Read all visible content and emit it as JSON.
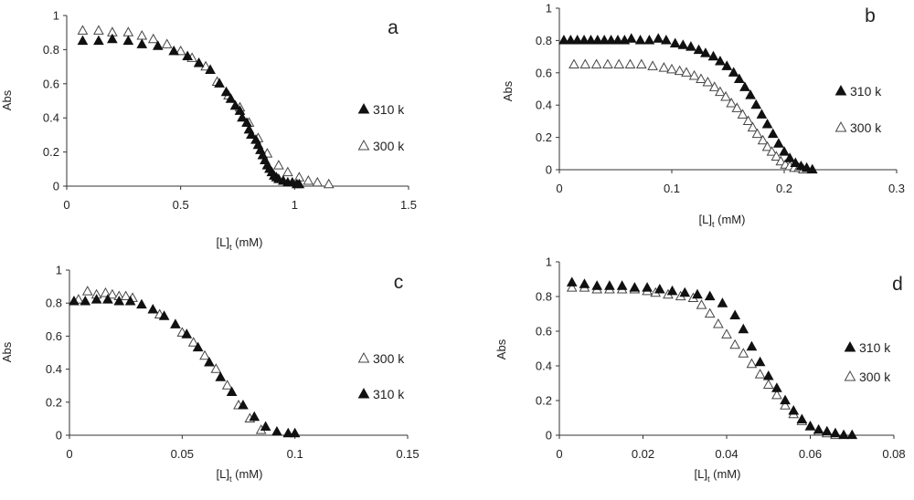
{
  "chart_data": [
    {
      "type": "scatter",
      "panel_label": "a",
      "xlabel_main": "[L]",
      "xlabel_sub": "t",
      "xlabel_unit": " (mM)",
      "ylabel": "Abs",
      "xlim": [
        0,
        1.5
      ],
      "ylim": [
        0,
        1
      ],
      "xticks": [
        "0",
        "0.5",
        "1",
        "1.5"
      ],
      "yticks": [
        "0",
        "0.2",
        "0.4",
        "0.6",
        "0.8",
        "1"
      ],
      "grid": false,
      "legend": [
        {
          "label": "310 k",
          "marker": "filled-triangle"
        },
        {
          "label": "300 k",
          "marker": "open-triangle"
        }
      ],
      "series": [
        {
          "name": "310 k",
          "marker": "filled-triangle",
          "x": [
            0.07,
            0.14,
            0.2,
            0.27,
            0.33,
            0.4,
            0.47,
            0.53,
            0.58,
            0.63,
            0.67,
            0.7,
            0.72,
            0.74,
            0.76,
            0.77,
            0.79,
            0.8,
            0.81,
            0.83,
            0.84,
            0.85,
            0.86,
            0.87,
            0.88,
            0.89,
            0.9,
            0.91,
            0.92,
            0.93,
            0.95,
            0.97,
            0.99,
            1.01,
            1.02
          ],
          "y": [
            0.85,
            0.85,
            0.86,
            0.85,
            0.83,
            0.82,
            0.79,
            0.76,
            0.72,
            0.68,
            0.6,
            0.55,
            0.51,
            0.47,
            0.44,
            0.4,
            0.37,
            0.33,
            0.3,
            0.27,
            0.24,
            0.21,
            0.18,
            0.15,
            0.12,
            0.1,
            0.08,
            0.06,
            0.05,
            0.04,
            0.03,
            0.02,
            0.02,
            0.01,
            0.01
          ]
        },
        {
          "name": "300 k",
          "marker": "open-triangle",
          "x": [
            0.07,
            0.14,
            0.2,
            0.27,
            0.33,
            0.38,
            0.44,
            0.5,
            0.55,
            0.61,
            0.66,
            0.71,
            0.76,
            0.8,
            0.84,
            0.88,
            0.93,
            0.97,
            1.02,
            1.06,
            1.1,
            1.15
          ],
          "y": [
            0.91,
            0.91,
            0.9,
            0.9,
            0.88,
            0.86,
            0.83,
            0.79,
            0.75,
            0.7,
            0.61,
            0.53,
            0.46,
            0.37,
            0.28,
            0.19,
            0.12,
            0.08,
            0.05,
            0.03,
            0.02,
            0.01
          ]
        }
      ]
    },
    {
      "type": "scatter",
      "panel_label": "b",
      "xlabel_main": "[L]",
      "xlabel_sub": "t",
      "xlabel_unit": " (mM)",
      "ylabel": "Abs",
      "xlim": [
        0,
        0.3
      ],
      "ylim": [
        0,
        1
      ],
      "xticks": [
        "0",
        "0.1",
        "0.2",
        "0.3"
      ],
      "yticks": [
        "0",
        "0.2",
        "0.4",
        "0.6",
        "0.8",
        "1"
      ],
      "grid": false,
      "legend": [
        {
          "label": "310 k",
          "marker": "filled-triangle"
        },
        {
          "label": "300 k",
          "marker": "open-triangle"
        }
      ],
      "series": [
        {
          "name": "310 k",
          "marker": "filled-triangle",
          "x": [
            0.004,
            0.01,
            0.016,
            0.022,
            0.028,
            0.034,
            0.04,
            0.046,
            0.052,
            0.058,
            0.064,
            0.072,
            0.08,
            0.088,
            0.095,
            0.103,
            0.11,
            0.117,
            0.124,
            0.13,
            0.137,
            0.143,
            0.149,
            0.155,
            0.16,
            0.165,
            0.17,
            0.175,
            0.18,
            0.185,
            0.19,
            0.195,
            0.2,
            0.205,
            0.21,
            0.215,
            0.22,
            0.225
          ],
          "y": [
            0.8,
            0.8,
            0.8,
            0.8,
            0.8,
            0.8,
            0.8,
            0.8,
            0.8,
            0.8,
            0.81,
            0.8,
            0.8,
            0.81,
            0.8,
            0.78,
            0.77,
            0.76,
            0.74,
            0.72,
            0.7,
            0.67,
            0.64,
            0.6,
            0.56,
            0.51,
            0.46,
            0.4,
            0.34,
            0.28,
            0.22,
            0.16,
            0.11,
            0.07,
            0.04,
            0.02,
            0.01,
            0.0
          ]
        },
        {
          "name": "300 k",
          "marker": "open-triangle",
          "x": [
            0.013,
            0.023,
            0.033,
            0.043,
            0.053,
            0.063,
            0.073,
            0.083,
            0.093,
            0.1,
            0.107,
            0.113,
            0.12,
            0.126,
            0.132,
            0.138,
            0.143,
            0.148,
            0.153,
            0.158,
            0.163,
            0.168,
            0.172,
            0.176,
            0.181,
            0.185,
            0.189,
            0.193,
            0.197,
            0.201,
            0.205,
            0.209,
            0.213,
            0.217
          ],
          "y": [
            0.65,
            0.65,
            0.65,
            0.65,
            0.65,
            0.65,
            0.65,
            0.64,
            0.63,
            0.62,
            0.61,
            0.6,
            0.58,
            0.56,
            0.54,
            0.51,
            0.48,
            0.45,
            0.41,
            0.38,
            0.34,
            0.3,
            0.26,
            0.22,
            0.18,
            0.14,
            0.11,
            0.08,
            0.05,
            0.03,
            0.02,
            0.01,
            0.01,
            0.0
          ]
        }
      ]
    },
    {
      "type": "scatter",
      "panel_label": "c",
      "xlabel_main": "[L]",
      "xlabel_sub": "t",
      "xlabel_unit": " (mM)",
      "ylabel": "Abs",
      "xlim": [
        0,
        0.15
      ],
      "ylim": [
        0,
        1
      ],
      "xticks": [
        "0",
        "0.05",
        "0.1",
        "0.15"
      ],
      "yticks": [
        "0",
        "0.2",
        "0.4",
        "0.6",
        "0.8",
        "1"
      ],
      "grid": false,
      "legend": [
        {
          "label": "300 k",
          "marker": "open-triangle"
        },
        {
          "label": "310 k",
          "marker": "filled-triangle"
        }
      ],
      "series": [
        {
          "name": "310 k",
          "marker": "filled-triangle",
          "x": [
            0.002,
            0.007,
            0.012,
            0.017,
            0.022,
            0.027,
            0.032,
            0.037,
            0.042,
            0.047,
            0.052,
            0.057,
            0.062,
            0.067,
            0.072,
            0.077,
            0.082,
            0.087,
            0.092,
            0.097,
            0.1
          ],
          "y": [
            0.81,
            0.81,
            0.82,
            0.82,
            0.81,
            0.81,
            0.79,
            0.76,
            0.72,
            0.67,
            0.61,
            0.53,
            0.44,
            0.35,
            0.26,
            0.18,
            0.11,
            0.05,
            0.02,
            0.01,
            0.01
          ]
        },
        {
          "name": "300 k",
          "marker": "open-triangle",
          "x": [
            0.004,
            0.008,
            0.012,
            0.016,
            0.019,
            0.022,
            0.025,
            0.028,
            0.04,
            0.05,
            0.055,
            0.06,
            0.065,
            0.07,
            0.075,
            0.08,
            0.085
          ],
          "y": [
            0.82,
            0.87,
            0.85,
            0.86,
            0.85,
            0.84,
            0.84,
            0.83,
            0.73,
            0.62,
            0.56,
            0.48,
            0.4,
            0.3,
            0.18,
            0.1,
            0.03
          ]
        }
      ]
    },
    {
      "type": "scatter",
      "panel_label": "d",
      "xlabel_main": "[L]",
      "xlabel_sub": "t",
      "xlabel_unit": " (mM)",
      "ylabel": "Abs",
      "xlim": [
        0,
        0.08
      ],
      "ylim": [
        0,
        1
      ],
      "xticks": [
        "0",
        "0.02",
        "0.04",
        "0.06",
        "0.08"
      ],
      "yticks": [
        "0",
        "0.2",
        "0.4",
        "0.6",
        "0.8",
        "1"
      ],
      "grid": false,
      "legend": [
        {
          "label": "310 k",
          "marker": "filled-triangle"
        },
        {
          "label": "300 k",
          "marker": "open-triangle"
        }
      ],
      "series": [
        {
          "name": "310 k",
          "marker": "filled-triangle",
          "x": [
            0.003,
            0.006,
            0.009,
            0.012,
            0.015,
            0.018,
            0.021,
            0.024,
            0.027,
            0.03,
            0.033,
            0.036,
            0.039,
            0.042,
            0.044,
            0.046,
            0.048,
            0.05,
            0.052,
            0.054,
            0.056,
            0.058,
            0.06,
            0.062,
            0.064,
            0.066,
            0.068,
            0.07
          ],
          "y": [
            0.88,
            0.87,
            0.86,
            0.86,
            0.86,
            0.85,
            0.85,
            0.84,
            0.83,
            0.82,
            0.81,
            0.8,
            0.76,
            0.69,
            0.61,
            0.51,
            0.42,
            0.34,
            0.27,
            0.2,
            0.14,
            0.09,
            0.05,
            0.03,
            0.02,
            0.01,
            0.0,
            0.0
          ]
        },
        {
          "name": "300 k",
          "marker": "open-triangle",
          "x": [
            0.003,
            0.006,
            0.009,
            0.012,
            0.015,
            0.018,
            0.021,
            0.023,
            0.026,
            0.029,
            0.032,
            0.034,
            0.036,
            0.038,
            0.04,
            0.042,
            0.044,
            0.046,
            0.048,
            0.05,
            0.052,
            0.054,
            0.056,
            0.058,
            0.06,
            0.062,
            0.064,
            0.066
          ],
          "y": [
            0.85,
            0.85,
            0.84,
            0.84,
            0.84,
            0.84,
            0.83,
            0.82,
            0.81,
            0.8,
            0.79,
            0.75,
            0.7,
            0.64,
            0.58,
            0.52,
            0.47,
            0.41,
            0.35,
            0.29,
            0.23,
            0.17,
            0.12,
            0.08,
            0.05,
            0.02,
            0.01,
            0.0
          ]
        }
      ]
    }
  ]
}
